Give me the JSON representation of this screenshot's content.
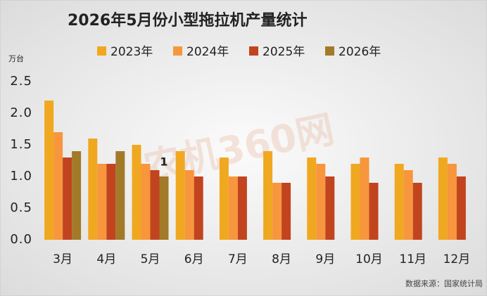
{
  "chart_data": {
    "type": "bar",
    "title": "2026年5月份小型拖拉机产量统计",
    "y_unit": "万台",
    "source": "数据来源：国家统计局",
    "watermark": "农机360网",
    "categories": [
      "3月",
      "4月",
      "5月",
      "6月",
      "7月",
      "8月",
      "9月",
      "10月",
      "11月",
      "12月"
    ],
    "series": [
      {
        "name": "2023年",
        "color": "#f0a820",
        "values": [
          2.2,
          1.6,
          1.5,
          1.4,
          1.3,
          1.4,
          1.3,
          1.2,
          1.2,
          1.3
        ]
      },
      {
        "name": "2024年",
        "color": "#f7963c",
        "values": [
          1.7,
          1.2,
          1.2,
          1.1,
          1.0,
          0.9,
          1.2,
          1.3,
          1.1,
          1.2
        ]
      },
      {
        "name": "2025年",
        "color": "#c1441f",
        "values": [
          1.3,
          1.2,
          1.1,
          1.0,
          1.0,
          0.9,
          1.0,
          0.9,
          0.9,
          1.0
        ]
      },
      {
        "name": "2026年",
        "color": "#a27a28",
        "values": [
          1.4,
          1.4,
          1.0,
          null,
          null,
          null,
          null,
          null,
          null,
          null
        ],
        "value_labels": [
          null,
          null,
          "1",
          null,
          null,
          null,
          null,
          null,
          null,
          null
        ]
      }
    ],
    "ylim": [
      0,
      2.5
    ],
    "yticks": [
      {
        "value": 0,
        "label": "0.0"
      },
      {
        "value": 0.5,
        "label": "0.5"
      },
      {
        "value": 1,
        "label": "1.0"
      },
      {
        "value": 1.5,
        "label": "1.5"
      },
      {
        "value": 2,
        "label": "2.0"
      },
      {
        "value": 2.5,
        "label": "2.5"
      }
    ],
    "legend": "top",
    "grid": false
  }
}
